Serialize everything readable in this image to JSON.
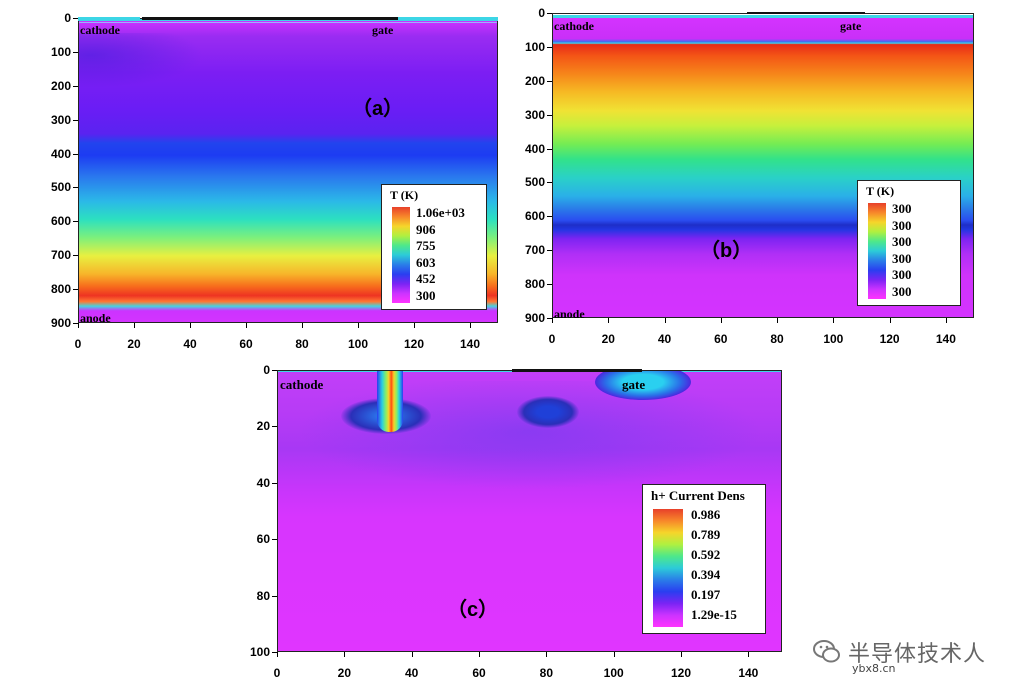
{
  "chart_data": [
    {
      "panel": "a",
      "type": "heatmap",
      "label": "（a）",
      "xlim": [
        0,
        150
      ],
      "ylim": [
        0,
        900
      ],
      "y_inverted": true,
      "xticks": [
        0,
        20,
        40,
        60,
        80,
        100,
        120,
        140
      ],
      "yticks": [
        0,
        100,
        200,
        300,
        400,
        500,
        600,
        700,
        800,
        900
      ],
      "legend": {
        "title": "T (K)",
        "values": [
          "1.06e+03",
          "906",
          "755",
          "603",
          "452",
          "300"
        ]
      },
      "annotations": [
        "cathode",
        "gate",
        "anode"
      ]
    },
    {
      "panel": "b",
      "type": "heatmap",
      "label": "（b）",
      "xlim": [
        0,
        150
      ],
      "ylim": [
        0,
        900
      ],
      "y_inverted": true,
      "xticks": [
        0,
        20,
        40,
        60,
        80,
        100,
        120,
        140
      ],
      "yticks": [
        0,
        100,
        200,
        300,
        400,
        500,
        600,
        700,
        800,
        900
      ],
      "legend": {
        "title": "T (K)",
        "values": [
          "300",
          "300",
          "300",
          "300",
          "300",
          "300"
        ]
      },
      "annotations": [
        "cathode",
        "gate",
        "anode"
      ]
    },
    {
      "panel": "c",
      "type": "heatmap",
      "label": "（c）",
      "xlim": [
        0,
        150
      ],
      "ylim": [
        0,
        100
      ],
      "y_inverted": true,
      "xticks": [
        0,
        20,
        40,
        60,
        80,
        100,
        120,
        140
      ],
      "yticks": [
        0,
        20,
        40,
        60,
        80,
        100
      ],
      "legend": {
        "title": "h+ Current Dens",
        "values": [
          "0.986",
          "0.789",
          "0.592",
          "0.394",
          "0.197",
          "1.29e-15"
        ]
      },
      "annotations": [
        "cathode",
        "gate"
      ]
    }
  ],
  "watermark": {
    "text": "半导体技术人",
    "url": "ybx8.cn"
  }
}
